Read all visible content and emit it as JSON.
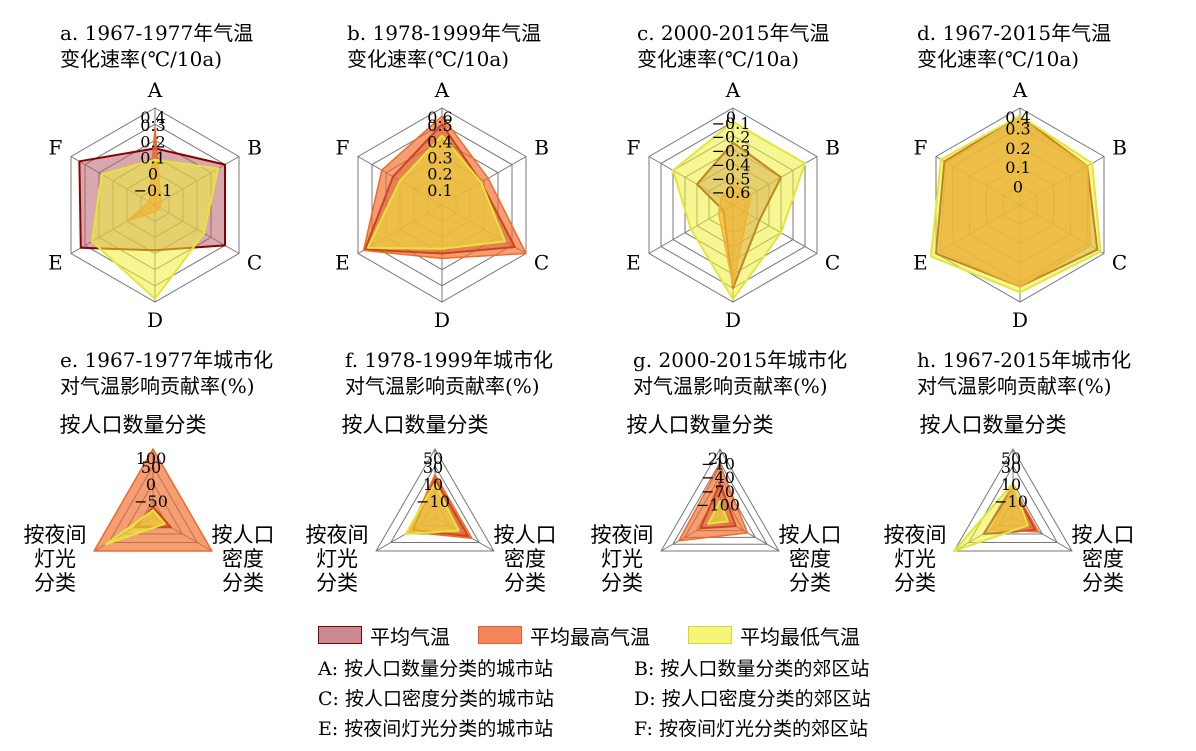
{
  "colors": {
    "mean": "#c98a8f",
    "max": "#f07a3e",
    "min": "#f2f25a",
    "axis": "#666666",
    "outline": "#8b0000"
  },
  "legend": [
    {
      "label": "平均气温",
      "color": "#c98a8f",
      "edge": "#8b0000"
    },
    {
      "label": "平均最高气温",
      "color": "#f5865a",
      "edge": "#e0602a"
    },
    {
      "label": "平均最低气温",
      "color": "#f4f57a",
      "edge": "#d8d830"
    }
  ],
  "notes": [
    "A: 按人口数量分类的城市站",
    "B: 按人口数量分类的郊区站",
    "C: 按人口密度分类的城市站",
    "D: 按人口密度分类的郊区站",
    "E: 按夜间灯光分类的城市站",
    "F: 按夜间灯光分类的郊区站"
  ],
  "chart_data": [
    {
      "type": "radar",
      "title": [
        "a. 1967-1977年气温",
        "变化速率(℃/10a)"
      ],
      "axes": [
        "A",
        "B",
        "C",
        "D",
        "E",
        "F"
      ],
      "ticks": [
        "0.4",
        "0.3",
        "0.2",
        "0.1",
        "0",
        "-0.1"
      ],
      "range": [
        -0.2,
        0.4
      ],
      "series": [
        {
          "name": "平均气温",
          "values": [
            0.15,
            0.3,
            0.3,
            0.08,
            0.33,
            0.34
          ]
        },
        {
          "name": "平均最高气温",
          "values": [
            0.28,
            -0.16,
            -0.16,
            -0.16,
            0.0,
            -0.16
          ]
        },
        {
          "name": "平均最低气温",
          "values": [
            0.08,
            0.25,
            0.15,
            0.38,
            0.25,
            0.18
          ]
        }
      ]
    },
    {
      "type": "radar",
      "title": [
        "b. 1978-1999年气温",
        "变化速率(℃/10a)"
      ],
      "axes": [
        "A",
        "B",
        "C",
        "D",
        "E",
        "F"
      ],
      "ticks": [
        "0.6",
        "0.5",
        "0.4",
        "0.3",
        "0.2",
        "0.1"
      ],
      "range": [
        0.0,
        0.6
      ],
      "series": [
        {
          "name": "平均气温",
          "values": [
            0.5,
            0.28,
            0.52,
            0.3,
            0.55,
            0.35
          ]
        },
        {
          "name": "平均最高气温",
          "values": [
            0.55,
            0.33,
            0.6,
            0.33,
            0.56,
            0.43
          ]
        },
        {
          "name": "平均最低气温",
          "values": [
            0.43,
            0.28,
            0.45,
            0.27,
            0.53,
            0.3
          ]
        }
      ]
    },
    {
      "type": "radar",
      "title": [
        "c. 2000-2015年气温",
        "变化速率(℃/10a)"
      ],
      "axes": [
        "A",
        "B",
        "C",
        "D",
        "E",
        "F"
      ],
      "ticks": [
        "0",
        "-0.1",
        "-0.2",
        "-0.3",
        "-0.4",
        "-0.5",
        "-0.6"
      ],
      "range": [
        -0.7,
        0.0
      ],
      "series": [
        {
          "name": "平均气温",
          "values": [
            -0.25,
            -0.3,
            -0.48,
            -0.1,
            -0.62,
            -0.4
          ]
        },
        {
          "name": "平均最高气温",
          "values": [
            -0.55,
            -0.55,
            -0.58,
            -0.12,
            -0.58,
            -0.6
          ]
        },
        {
          "name": "平均最低气温",
          "values": [
            -0.1,
            -0.1,
            -0.3,
            -0.02,
            -0.35,
            -0.2
          ]
        }
      ]
    },
    {
      "type": "radar",
      "title": [
        "d. 1967-2015年气温",
        "变化速率(℃/10a)"
      ],
      "axes": [
        "A",
        "B",
        "C",
        "D",
        "E",
        "F"
      ],
      "ticks": [
        "0.4",
        "0.3",
        "0.2",
        "0.1",
        "0"
      ],
      "range": [
        -0.1,
        0.4
      ],
      "series": [
        {
          "name": "平均气温",
          "values": [
            0.36,
            0.3,
            0.36,
            0.32,
            0.4,
            0.35
          ]
        },
        {
          "name": "平均最高气温",
          "values": [
            0.34,
            0.3,
            0.32,
            0.32,
            0.38,
            0.34
          ]
        },
        {
          "name": "平均最低气温",
          "values": [
            0.36,
            0.33,
            0.38,
            0.35,
            0.43,
            0.37
          ]
        }
      ]
    },
    {
      "type": "radar",
      "title": [
        "e. 1967-1977年城市化",
        "对气温影响贡献率(%)"
      ],
      "axes": [
        "按人口数量分类",
        "按人口密度分类",
        "按夜间灯光分类"
      ],
      "ticks": [
        "100",
        "50",
        "0",
        "-50"
      ],
      "range": [
        -100,
        100
      ],
      "series": [
        {
          "name": "平均气温",
          "values": [
            -70,
            -40,
            -40
          ]
        },
        {
          "name": "平均最高气温",
          "values": [
            100,
            100,
            100
          ]
        },
        {
          "name": "平均最低气温",
          "values": [
            -80,
            -60,
            60
          ]
        }
      ]
    },
    {
      "type": "radar",
      "title": [
        "f. 1978-1999年城市化",
        "对气温影响贡献率(%)"
      ],
      "axes": [
        "按人口数量分类",
        "按人口密度分类",
        "按夜间灯光分类"
      ],
      "ticks": [
        "50",
        "30",
        "10",
        "-10"
      ],
      "range": [
        -30,
        50
      ],
      "series": [
        {
          "name": "平均气温",
          "values": [
            15,
            15,
            0
          ]
        },
        {
          "name": "平均最高气温",
          "values": [
            20,
            20,
            5
          ]
        },
        {
          "name": "平均最低气温",
          "values": [
            10,
            2,
            10
          ]
        }
      ]
    },
    {
      "type": "radar",
      "title": [
        "g. 2000-2015年城市化",
        "对气温影响贡献率(%)"
      ],
      "axes": [
        "按人口数量分类",
        "按人口密度分类",
        "按夜间灯光分类"
      ],
      "ticks": [
        "20",
        "-10",
        "-40",
        "-70",
        "-100"
      ],
      "range": [
        -130,
        20
      ],
      "series": [
        {
          "name": "平均气温",
          "values": [
            -55,
            -90,
            -80
          ]
        },
        {
          "name": "平均最高气温",
          "values": [
            -15,
            -60,
            -25
          ]
        },
        {
          "name": "平均最低气温",
          "values": [
            -95,
            -110,
            -100
          ]
        }
      ]
    },
    {
      "type": "radar",
      "title": [
        "h. 1967-2015年城市化",
        "对气温影响贡献率(%)"
      ],
      "axes": [
        "按人口数量分类",
        "按人口密度分类",
        "按夜间灯光分类"
      ],
      "ticks": [
        "50",
        "30",
        "10",
        "-10"
      ],
      "range": [
        -30,
        50
      ],
      "series": [
        {
          "name": "平均气温",
          "values": [
            5,
            0,
            10
          ]
        },
        {
          "name": "平均最高气温",
          "values": [
            5,
            5,
            0
          ]
        },
        {
          "name": "平均最低气温",
          "values": [
            10,
            -10,
            50
          ]
        }
      ]
    }
  ]
}
